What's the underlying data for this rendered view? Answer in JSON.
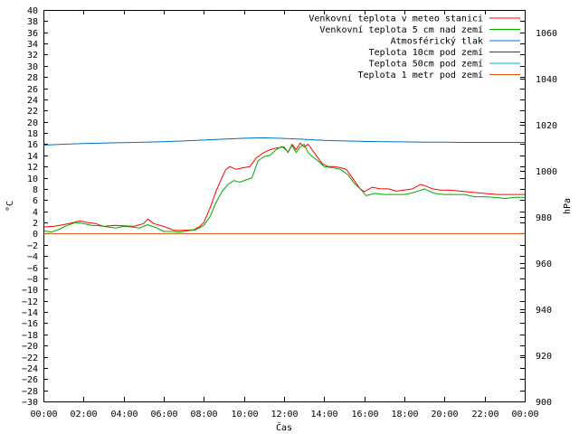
{
  "chart_data": {
    "type": "line",
    "xlabel": "Čas",
    "ylabel": "°C",
    "y2label": "hPa",
    "x_ticks": [
      "00:00",
      "02:00",
      "04:00",
      "06:00",
      "08:00",
      "10:00",
      "12:00",
      "14:00",
      "16:00",
      "18:00",
      "20:00",
      "22:00",
      "00:00"
    ],
    "xlim": [
      0,
      24
    ],
    "ylim": [
      -30,
      40
    ],
    "y_ticks": [
      -30,
      -28,
      -26,
      -24,
      -22,
      -20,
      -18,
      -16,
      -14,
      -12,
      -10,
      -8,
      -6,
      -4,
      -2,
      0,
      2,
      4,
      6,
      8,
      10,
      12,
      14,
      16,
      18,
      20,
      22,
      24,
      26,
      28,
      30,
      32,
      34,
      36,
      38,
      40
    ],
    "y2lim": [
      900,
      1070
    ],
    "y2_ticks": [
      900,
      920,
      940,
      960,
      980,
      1000,
      1020,
      1040,
      1060
    ],
    "grid": false,
    "legend_position": "top-right",
    "series": [
      {
        "name": "Venkovní teplota v meteo stanici",
        "color": "#ff0000",
        "axis": "left",
        "x": [
          0,
          0.5,
          1,
          1.5,
          1.8,
          2.2,
          2.6,
          3,
          3.5,
          4,
          4.5,
          5,
          5.2,
          5.5,
          6,
          6.5,
          7,
          7.5,
          7.8,
          8,
          8.3,
          8.6,
          8.9,
          9.1,
          9.3,
          9.6,
          10,
          10.3,
          10.6,
          11,
          11.3,
          11.6,
          12,
          12.2,
          12.4,
          12.6,
          12.8,
          13,
          13.2,
          13.4,
          13.6,
          13.9,
          14.2,
          14.5,
          14.8,
          15.1,
          15.4,
          15.6,
          15.8,
          16,
          16.4,
          16.8,
          17.2,
          17.6,
          18,
          18.4,
          18.8,
          19,
          19.4,
          19.8,
          20.2,
          20.8,
          21.4,
          22,
          22.6,
          23.2,
          24
        ],
        "y": [
          1.2,
          1.3,
          1.6,
          2.0,
          2.3,
          2.0,
          1.8,
          1.3,
          1.5,
          1.4,
          1.3,
          1.8,
          2.6,
          1.8,
          1.3,
          0.6,
          0.6,
          0.7,
          1.3,
          2.0,
          4.5,
          7.5,
          10.0,
          11.5,
          12.0,
          11.5,
          11.8,
          12.0,
          13.5,
          14.5,
          15.0,
          15.3,
          15.5,
          14.5,
          16.0,
          15.0,
          16.2,
          15.5,
          16.0,
          15.0,
          14.0,
          12.5,
          12.0,
          12.0,
          11.8,
          11.5,
          10.0,
          9.0,
          8.0,
          7.5,
          8.3,
          8.0,
          8.0,
          7.6,
          7.8,
          8.0,
          8.8,
          8.6,
          8.0,
          7.8,
          7.8,
          7.6,
          7.4,
          7.2,
          7.0,
          7.0,
          7.0
        ]
      },
      {
        "name": "Venkovní teplota 5 cm nad zemí",
        "color": "#00aa00",
        "axis": "left",
        "x": [
          0,
          0.4,
          0.8,
          1.2,
          1.6,
          2,
          2.4,
          2.8,
          3.2,
          3.6,
          4,
          4.4,
          4.8,
          5.2,
          5.6,
          6,
          6.4,
          6.8,
          7.2,
          7.6,
          8,
          8.3,
          8.6,
          8.9,
          9.2,
          9.5,
          9.8,
          10.1,
          10.4,
          10.7,
          11,
          11.3,
          11.6,
          11.9,
          12.2,
          12.4,
          12.6,
          12.8,
          13,
          13.2,
          13.4,
          13.7,
          14,
          14.4,
          14.8,
          15.2,
          15.5,
          15.8,
          16.1,
          16.5,
          17,
          17.5,
          18,
          18.5,
          19,
          19.5,
          20,
          20.5,
          21,
          21.5,
          22,
          22.5,
          23,
          23.5,
          24
        ],
        "y": [
          0.5,
          0.3,
          0.8,
          1.5,
          2.0,
          1.8,
          1.5,
          1.4,
          1.2,
          1.0,
          1.3,
          1.2,
          1.0,
          1.6,
          1.1,
          0.4,
          0.4,
          0.3,
          0.5,
          0.7,
          1.5,
          3.0,
          5.5,
          7.5,
          8.8,
          9.5,
          9.2,
          9.6,
          10.0,
          13.0,
          13.8,
          14.0,
          15.0,
          15.6,
          14.6,
          15.8,
          14.5,
          15.5,
          16.0,
          14.5,
          13.8,
          13.0,
          12.0,
          11.8,
          11.5,
          10.5,
          9.0,
          8.0,
          6.8,
          7.2,
          7.0,
          7.0,
          7.0,
          7.4,
          8.0,
          7.2,
          7.0,
          7.0,
          7.0,
          6.6,
          6.6,
          6.5,
          6.3,
          6.5,
          6.5
        ]
      },
      {
        "name": "Atmosférický tlak",
        "color": "#0070c0",
        "axis": "right",
        "x": [
          0,
          1,
          2,
          3,
          4,
          5,
          6,
          7,
          8,
          9,
          10,
          11,
          12,
          13,
          14,
          15,
          16,
          17,
          18,
          19,
          20,
          21,
          22,
          23,
          24
        ],
        "y": [
          1011.3,
          1011.7,
          1012.0,
          1012.2,
          1012.4,
          1012.6,
          1012.8,
          1013.1,
          1013.5,
          1013.9,
          1014.3,
          1014.5,
          1014.2,
          1013.8,
          1013.4,
          1013.1,
          1012.9,
          1012.8,
          1012.7,
          1012.6,
          1012.6,
          1012.5,
          1012.5,
          1012.5,
          1012.5
        ]
      },
      {
        "name": "Teplota 10cm pod zemí",
        "color": "#a000a0",
        "axis": "left",
        "x": [],
        "y": []
      },
      {
        "name": "Teplota 50cm pod zemí",
        "color": "#00b0e0",
        "axis": "left",
        "x": [],
        "y": []
      },
      {
        "name": "Teplota 1 metr pod zemí",
        "color": "#d05010",
        "axis": "left",
        "x": [
          0,
          24
        ],
        "y": [
          0,
          0
        ]
      }
    ]
  }
}
